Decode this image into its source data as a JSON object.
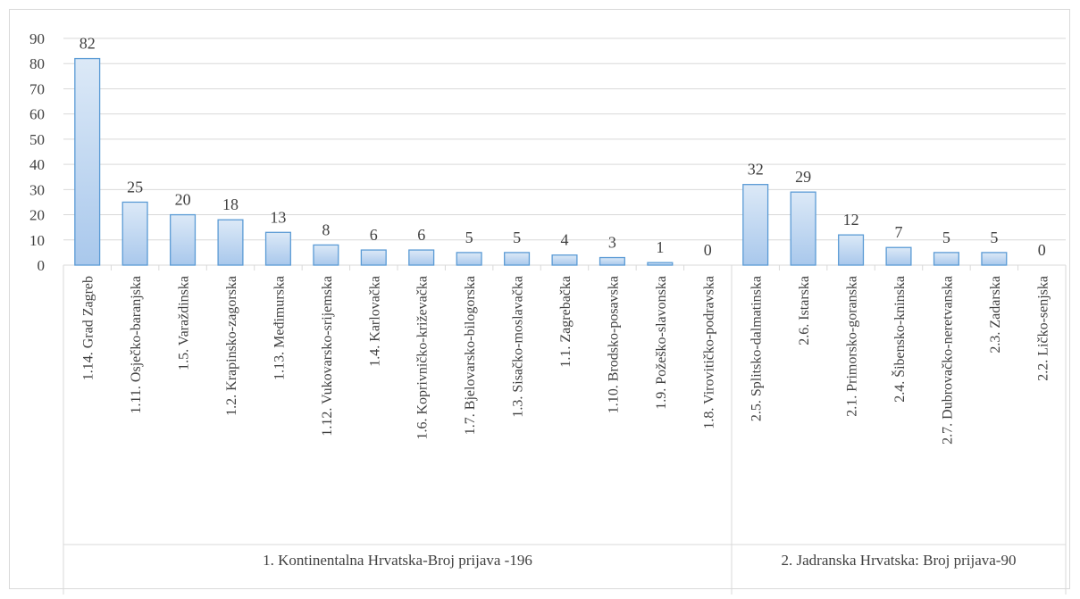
{
  "chart_data": {
    "type": "bar",
    "title": "",
    "xlabel": "",
    "ylabel": "",
    "ylim": [
      0,
      90
    ],
    "yticks": [
      0,
      10,
      20,
      30,
      40,
      50,
      60,
      70,
      80,
      90
    ],
    "grid": true,
    "legend": "none",
    "colors": {
      "bar_fill_top": "#dce9f7",
      "bar_fill_bottom": "#a9c8ec",
      "bar_stroke": "#5b9bd5",
      "grid": "#d9d9d9",
      "text": "#404040"
    },
    "groups": [
      {
        "label": "1. Kontinentalna Hrvatska-Broj prijava -196",
        "categories": [
          "1.14. Grad Zagreb",
          "1.11. Osječko-baranjska",
          "1.5. Varaždinska",
          "1.2. Krapinsko-zagorska",
          "1.13. Međimurska",
          "1.12. Vukovarsko-srijemska",
          "1.4. Karlovačka",
          "1.6. Koprivničko-križevačka",
          "1.7. Bjelovarsko-bilogorska",
          "1.3. Sisačko-moslavačka",
          "1.1. Zagrebačka",
          "1.10. Brodsko-posavska",
          "1.9. Požeško-slavonska",
          "1.8. Virovitičko-podravska"
        ],
        "values": [
          82,
          25,
          20,
          18,
          13,
          8,
          6,
          6,
          5,
          5,
          4,
          3,
          1,
          0
        ]
      },
      {
        "label": "2. Jadranska Hrvatska: Broj prijava-90",
        "categories": [
          "2.5. Splitsko-dalmatinska",
          "2.6. Istarska",
          "2.1. Primorsko-goranska",
          "2.4. Šibensko-kninska",
          "2.7. Dubrovačko-neretvanska",
          "2.3. Zadarska",
          "2.2. Ličko-senjska"
        ],
        "values": [
          32,
          29,
          12,
          7,
          5,
          5,
          0
        ]
      }
    ]
  }
}
